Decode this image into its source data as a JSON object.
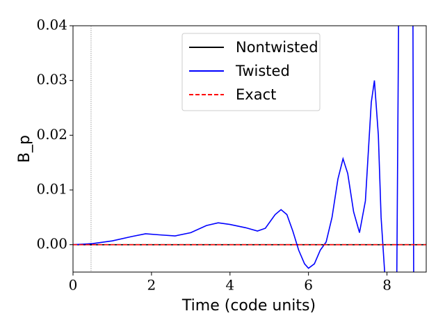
{
  "chart_data": {
    "type": "line",
    "xlabel": "Time (code units)",
    "ylabel": "B_p",
    "xlim": [
      0,
      9
    ],
    "xticks": [
      0,
      2,
      4,
      6,
      8
    ],
    "ylim": [
      -0.005,
      0.04
    ],
    "yticks": [
      {
        "value": 0,
        "label": "0.00"
      },
      {
        "value": 0.01,
        "label": "0.01"
      },
      {
        "value": 0.02,
        "label": "0.02"
      },
      {
        "value": 0.03,
        "label": "0.03"
      },
      {
        "value": 0.04,
        "label": "0.04"
      }
    ],
    "vline": 0.46,
    "legend": "upper center",
    "series": [
      {
        "name": "Nontwisted",
        "color": "#000000",
        "dash": false,
        "x": [
          0,
          9
        ],
        "values": [
          0,
          0
        ]
      },
      {
        "name": "Twisted",
        "color": "#0000ff",
        "dash": false,
        "x": [
          0,
          0.5,
          1,
          1.5,
          1.85,
          2.2,
          2.6,
          3.0,
          3.4,
          3.7,
          4.0,
          4.4,
          4.7,
          4.9,
          5.15,
          5.3,
          5.45,
          5.6,
          5.75,
          5.9,
          6.0,
          6.15,
          6.3,
          6.45,
          6.6,
          6.75,
          6.88,
          7.0,
          7.15,
          7.3,
          7.45,
          7.6,
          7.68,
          7.78,
          7.85,
          7.95,
          8.25,
          8.3,
          8.66,
          8.68,
          9
        ],
        "values": [
          0,
          0.0002,
          0.0007,
          0.0015,
          0.002,
          0.0018,
          0.0016,
          0.0022,
          0.0035,
          0.004,
          0.0037,
          0.0031,
          0.0025,
          0.003,
          0.0055,
          0.0064,
          0.0055,
          0.0025,
          -0.001,
          -0.0035,
          -0.0043,
          -0.0035,
          -0.001,
          0.0005,
          0.005,
          0.012,
          0.0157,
          0.013,
          0.006,
          0.0022,
          0.008,
          0.026,
          0.03,
          0.02,
          0.005,
          -0.006,
          -0.006,
          0.045,
          0.045,
          -0.006,
          -0.006
        ]
      },
      {
        "name": "Exact",
        "color": "#ff0000",
        "dash": true,
        "x": [
          0,
          9
        ],
        "values": [
          0,
          0
        ]
      }
    ]
  }
}
